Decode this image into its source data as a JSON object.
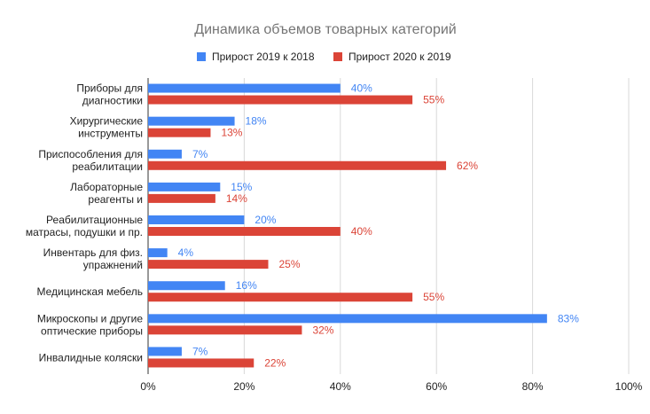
{
  "chart_data": {
    "type": "bar",
    "orientation": "horizontal",
    "title": "Динамика объемов товарных категорий",
    "categories": [
      [
        "Приборы для",
        "диагностики"
      ],
      [
        "Хирургические",
        "инструменты"
      ],
      [
        "Приспособления для",
        "реабилитации"
      ],
      [
        "Лабораторные",
        "реагенты и"
      ],
      [
        "Реабилитационные",
        "матрасы, подушки и пр."
      ],
      [
        "Инвентарь для физ.",
        "упражнений"
      ],
      [
        "Медицинская мебель"
      ],
      [
        "Микроскопы и другие",
        "оптические приборы"
      ],
      [
        "Инвалидные коляски"
      ]
    ],
    "series": [
      {
        "name": "Прирост 2019 к 2018",
        "color": "#4285f4",
        "values": [
          40,
          18,
          7,
          15,
          20,
          4,
          16,
          83,
          7
        ],
        "labels": [
          "40%",
          "18%",
          "7%",
          "15%",
          "20%",
          "4%",
          "16%",
          "83%",
          "7%"
        ]
      },
      {
        "name": "Прирост 2020 к 2019",
        "color": "#db4437",
        "values": [
          55,
          13,
          62,
          14,
          40,
          25,
          55,
          32,
          22
        ],
        "labels": [
          "55%",
          "13%",
          "62%",
          "14%",
          "40%",
          "25%",
          "55%",
          "32%",
          "22%"
        ]
      }
    ],
    "xlim": [
      0,
      100
    ],
    "x_ticks": [
      "0%",
      "20%",
      "40%",
      "60%",
      "80%",
      "100%"
    ],
    "grid": true,
    "legend_position": "top"
  }
}
